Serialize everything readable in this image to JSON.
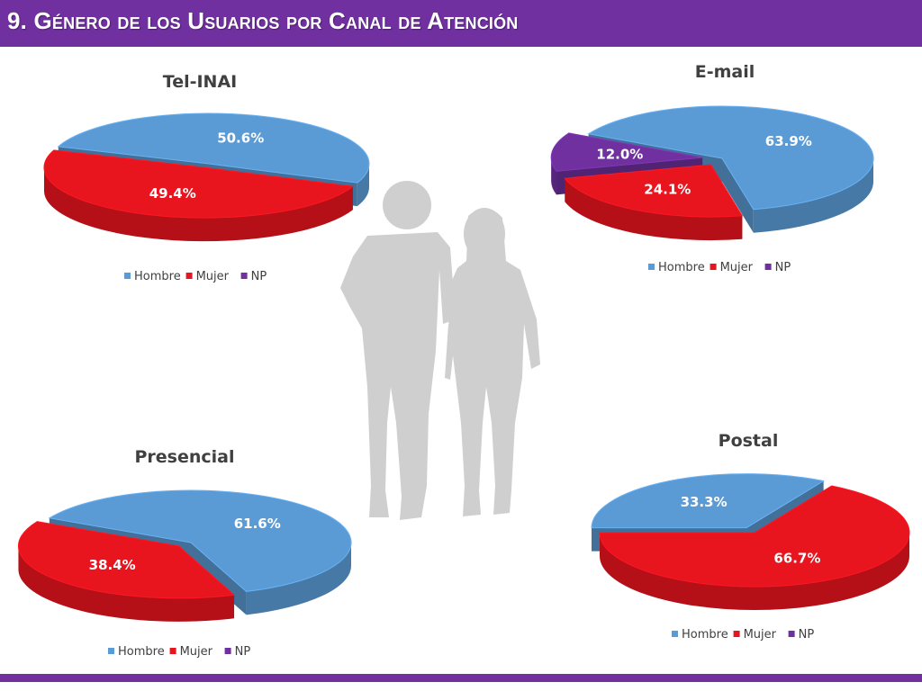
{
  "header": {
    "title": "9. Género de los Usuarios por Canal de Atención",
    "color": "#7030a0"
  },
  "legend_labels": [
    "Hombre",
    "Mujer",
    "NP"
  ],
  "colors": {
    "Hombre": "#5b9bd5",
    "Mujer": "#e8141e",
    "NP": "#7030a0"
  },
  "chart_data": [
    {
      "type": "pie",
      "title": "Tel-INAI",
      "categories": [
        "Hombre",
        "Mujer"
      ],
      "values": [
        50.6,
        49.4
      ],
      "labels": [
        "50.6%",
        "49.4%"
      ],
      "exploded": "Mujer",
      "legend": "bottom"
    },
    {
      "type": "pie",
      "title": "E-mail",
      "categories": [
        "Hombre",
        "Mujer",
        "NP"
      ],
      "values": [
        63.9,
        24.1,
        12.0
      ],
      "labels": [
        "63.9%",
        "24.1%",
        "12.0%"
      ],
      "exploded": "Mujer, NP",
      "legend": "bottom"
    },
    {
      "type": "pie",
      "title": "Presencial",
      "categories": [
        "Hombre",
        "Mujer"
      ],
      "values": [
        61.6,
        38.4
      ],
      "labels": [
        "61.6%",
        "38.4%"
      ],
      "exploded": "Mujer",
      "legend": "bottom"
    },
    {
      "type": "pie",
      "title": "Postal",
      "categories": [
        "Hombre",
        "Mujer"
      ],
      "values": [
        33.3,
        66.7
      ],
      "labels": [
        "33.3%",
        "66.7%"
      ],
      "exploded": "Hombre",
      "legend": "bottom"
    }
  ],
  "decoration": {
    "icon": "couple-walking-silhouette-icon"
  }
}
